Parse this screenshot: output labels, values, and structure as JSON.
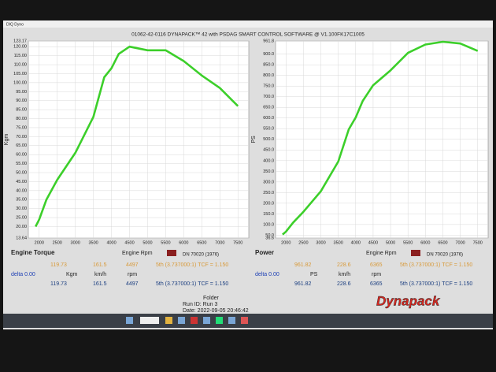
{
  "window_title": "DIQ Dyno",
  "header": "01062-42-0116 DYNAPACK™ 42 with PSDAG SMART CONTROL SOFTWARE @ V1.100FK17C1005",
  "chart_data": [
    {
      "type": "line",
      "y_label": "Kgm",
      "grid": true,
      "x": [
        1900,
        2000,
        2200,
        2500,
        3000,
        3500,
        3800,
        4000,
        4200,
        4500,
        5000,
        5500,
        6000,
        6500,
        7000,
        7500
      ],
      "series": [
        {
          "name": "Engine Torque",
          "color": "#3ccf2a",
          "values": [
            20,
            24,
            35,
            46,
            61,
            81,
            103,
            108,
            116,
            120,
            118,
            118,
            112,
            104,
            97,
            87
          ]
        }
      ],
      "xlim": [
        1700,
        7800
      ],
      "xticks": [
        2000,
        2500,
        3000,
        3500,
        4000,
        4500,
        5000,
        5500,
        6000,
        6500,
        7000,
        7500
      ],
      "ylim": [
        13.64,
        123.17
      ],
      "yticks": [
        13.64,
        {
          "value": 20,
          "label": "20.00"
        },
        {
          "value": 25,
          "label": "25.00"
        },
        {
          "value": 30,
          "label": "30.00"
        },
        {
          "value": 35,
          "label": "35.00"
        },
        {
          "value": 40,
          "label": "40.00"
        },
        {
          "value": 45,
          "label": "45.00"
        },
        {
          "value": 50,
          "label": "50.00"
        },
        {
          "value": 55,
          "label": "55.00"
        },
        {
          "value": 60,
          "label": "60.00"
        },
        {
          "value": 65,
          "label": "65.00"
        },
        {
          "value": 70,
          "label": "70.00"
        },
        {
          "value": 75,
          "label": "75.00"
        },
        {
          "value": 80,
          "label": "80.00"
        },
        {
          "value": 85,
          "label": "85.00"
        },
        {
          "value": 90,
          "label": "90.00"
        },
        {
          "value": 95,
          "label": "95.00"
        },
        {
          "value": 100,
          "label": "100.00"
        },
        {
          "value": 105,
          "label": "105.00"
        },
        {
          "value": 110,
          "label": "110.00"
        },
        {
          "value": 115,
          "label": "115.00"
        },
        {
          "value": 120,
          "label": "120.00"
        },
        123.17
      ]
    },
    {
      "type": "line",
      "y_label": "PS",
      "grid": true,
      "x": [
        1900,
        2000,
        2200,
        2500,
        3000,
        3500,
        3800,
        4000,
        4200,
        4500,
        5000,
        5500,
        6000,
        6500,
        7000,
        7500
      ],
      "series": [
        {
          "name": "Power",
          "color": "#3ccf2a",
          "values": [
            53,
            67,
            108,
            160,
            256,
            396,
            547,
            603,
            680,
            754,
            824,
            906,
            945,
            958,
            950,
            915
          ]
        }
      ],
      "xlim": [
        1700,
        7800
      ],
      "xticks": [
        2000,
        2500,
        3000,
        3500,
        4000,
        4500,
        5000,
        5500,
        6000,
        6500,
        7000,
        7500
      ],
      "ylim": [
        36.6,
        961.8
      ],
      "yticks": [
        36.6,
        {
          "value": 50,
          "label": "50.0"
        },
        {
          "value": 100,
          "label": "100.0"
        },
        {
          "value": 150,
          "label": "150.0"
        },
        {
          "value": 200,
          "label": "200.0"
        },
        {
          "value": 250,
          "label": "250.0"
        },
        {
          "value": 300,
          "label": "300.0"
        },
        {
          "value": 350,
          "label": "350.0"
        },
        {
          "value": 400,
          "label": "400.0"
        },
        {
          "value": 450,
          "label": "450.0"
        },
        {
          "value": 500,
          "label": "500.0"
        },
        {
          "value": 550,
          "label": "550.0"
        },
        {
          "value": 600,
          "label": "600.0"
        },
        {
          "value": 650,
          "label": "650.0"
        },
        {
          "value": 700,
          "label": "700.0"
        },
        {
          "value": 750,
          "label": "750.0"
        },
        {
          "value": 800,
          "label": "800.0"
        },
        {
          "value": 850,
          "label": "850.0"
        },
        {
          "value": 900,
          "label": "900.0"
        },
        961.8
      ]
    }
  ],
  "panels": [
    {
      "rpm_label": "Engine Rpm",
      "dn": "DN 70020 (1976)",
      "readout": [
        119.73,
        161.5,
        4497,
        "5th (3.737000:1) TCF = 1.150"
      ],
      "delta": "delta 0.00",
      "units": [
        "Kgm",
        "km/h",
        "rpm"
      ],
      "values": [
        119.73,
        161.5,
        4497,
        "5th (3.737000:1) TCF = 1.150"
      ]
    },
    {
      "rpm_label": "Engine Rpm",
      "dn": "DN 70020 (1976)",
      "readout": [
        961.82,
        228.6,
        6365,
        "5th (3.737000:1) TCF = 1.150"
      ],
      "delta": "delta 0.00",
      "units": [
        "PS",
        "km/h",
        "rpm"
      ],
      "values": [
        961.82,
        228.6,
        6365,
        "5th (3.737000:1) TCF = 1.150"
      ]
    }
  ],
  "footer": {
    "folder": "Folder",
    "run": "Run ID: Run 3",
    "date": "Date: 2022-09-05 20:46:42",
    "logo": "Dynapack"
  }
}
